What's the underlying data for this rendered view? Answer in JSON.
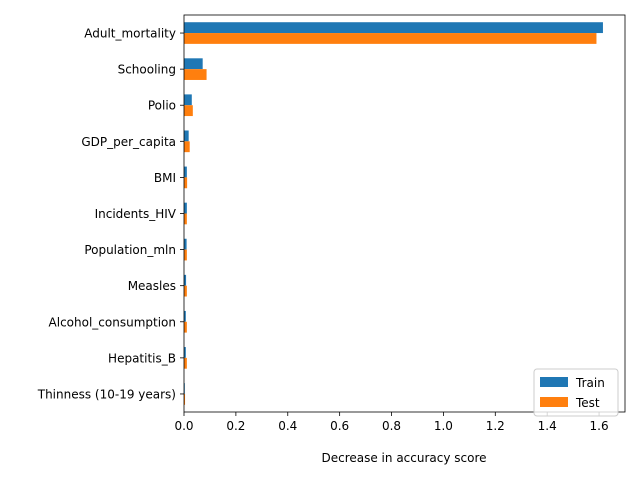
{
  "chart_data": {
    "type": "bar",
    "orientation": "horizontal",
    "categories": [
      "Adult_mortality",
      "Schooling",
      "Polio",
      "GDP_per_capita",
      "BMI",
      "Incidents_HIV",
      "Population_mln",
      "Measles",
      "Alcohol_consumption",
      "Hepatitis_B",
      "Thinness (10-19 years)"
    ],
    "series": [
      {
        "name": "Train",
        "color": "#1f77b4",
        "values": [
          1.615,
          0.072,
          0.03,
          0.018,
          0.011,
          0.011,
          0.01,
          0.008,
          0.007,
          0.007,
          0.003
        ]
      },
      {
        "name": "Test",
        "color": "#ff7f0e",
        "values": [
          1.59,
          0.087,
          0.034,
          0.022,
          0.012,
          0.011,
          0.011,
          0.011,
          0.011,
          0.011,
          0.004
        ]
      }
    ],
    "xlabel": "Decrease in accuracy score",
    "ylabel": "",
    "xlim": [
      0,
      1.7
    ],
    "xticks": [
      0.0,
      0.2,
      0.4,
      0.6,
      0.8,
      1.0,
      1.2,
      1.4,
      1.6
    ],
    "xtick_labels": [
      "0.0",
      "0.2",
      "0.4",
      "0.6",
      "0.8",
      "1.0",
      "1.2",
      "1.4",
      "1.6"
    ],
    "grid": false,
    "legend_position": "lower-right"
  }
}
